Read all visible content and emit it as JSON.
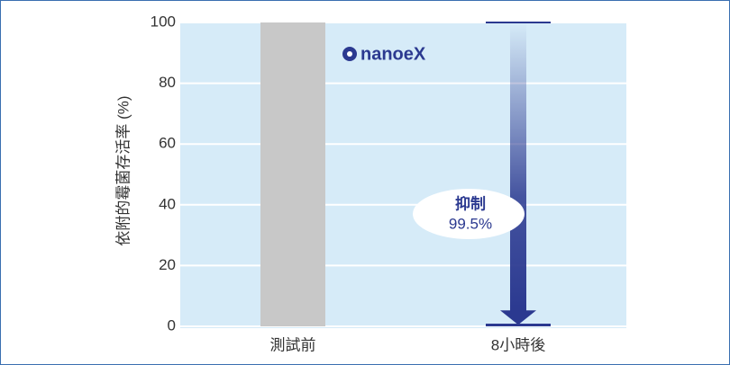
{
  "chart_data": {
    "type": "bar",
    "y_label": "依附的霉菌存活率 (%)",
    "categories": [
      "測試前",
      "8小時後"
    ],
    "values": [
      100,
      0.5
    ],
    "colors": [
      "#c8c8c8",
      "#2b3990"
    ],
    "ylim": [
      0,
      100
    ],
    "yticks": [
      0,
      20,
      40,
      60,
      80,
      100
    ],
    "grid": true,
    "annotation": {
      "title": "抑制",
      "text": "99.5%"
    },
    "logo": "nanoeX"
  }
}
